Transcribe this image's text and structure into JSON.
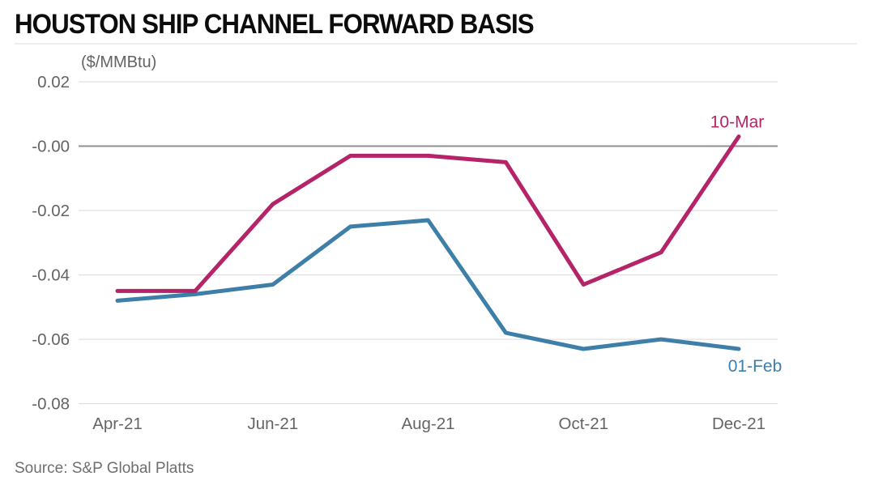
{
  "header": {
    "title": "HOUSTON SHIP CHANNEL FORWARD BASIS"
  },
  "chart_data": {
    "type": "line",
    "title": "HOUSTON SHIP CHANNEL FORWARD BASIS",
    "unit_label": "($/MMBtu)",
    "x": [
      "Apr-21",
      "May-21",
      "Jun-21",
      "Jul-21",
      "Aug-21",
      "Sep-21",
      "Oct-21",
      "Nov-21",
      "Dec-21"
    ],
    "x_tick_labels": [
      "Apr-21",
      "Jun-21",
      "Aug-21",
      "Oct-21",
      "Dec-21"
    ],
    "x_tick_indices": [
      0,
      2,
      4,
      6,
      8
    ],
    "ylim": [
      -0.08,
      0.02
    ],
    "yticks": [
      {
        "label": "0.02",
        "value": 0.02,
        "zero_line": false
      },
      {
        "label": "-0.00",
        "value": 0.0,
        "zero_line": true
      },
      {
        "label": "-0.02",
        "value": -0.02,
        "zero_line": false
      },
      {
        "label": "-0.04",
        "value": -0.04,
        "zero_line": false
      },
      {
        "label": "-0.06",
        "value": -0.06,
        "zero_line": false
      },
      {
        "label": "-0.08",
        "value": -0.08,
        "zero_line": false
      }
    ],
    "grid": "horizontal",
    "legend_position": "inline labels at line ends",
    "series": [
      {
        "name": "10-Mar",
        "color": "#b52368",
        "values": [
          -0.045,
          -0.045,
          -0.018,
          -0.003,
          -0.003,
          -0.005,
          -0.043,
          -0.033,
          0.003
        ]
      },
      {
        "name": "01-Feb",
        "color": "#3d7fa9",
        "values": [
          -0.048,
          -0.046,
          -0.043,
          -0.025,
          -0.023,
          -0.058,
          -0.063,
          -0.06,
          -0.063
        ]
      }
    ],
    "colors": {
      "grid": "#d9d9d9",
      "zero_line": "#8f8f8f",
      "tick_text": "#636466"
    }
  },
  "source": {
    "text": "Source: S&P Global Platts"
  }
}
